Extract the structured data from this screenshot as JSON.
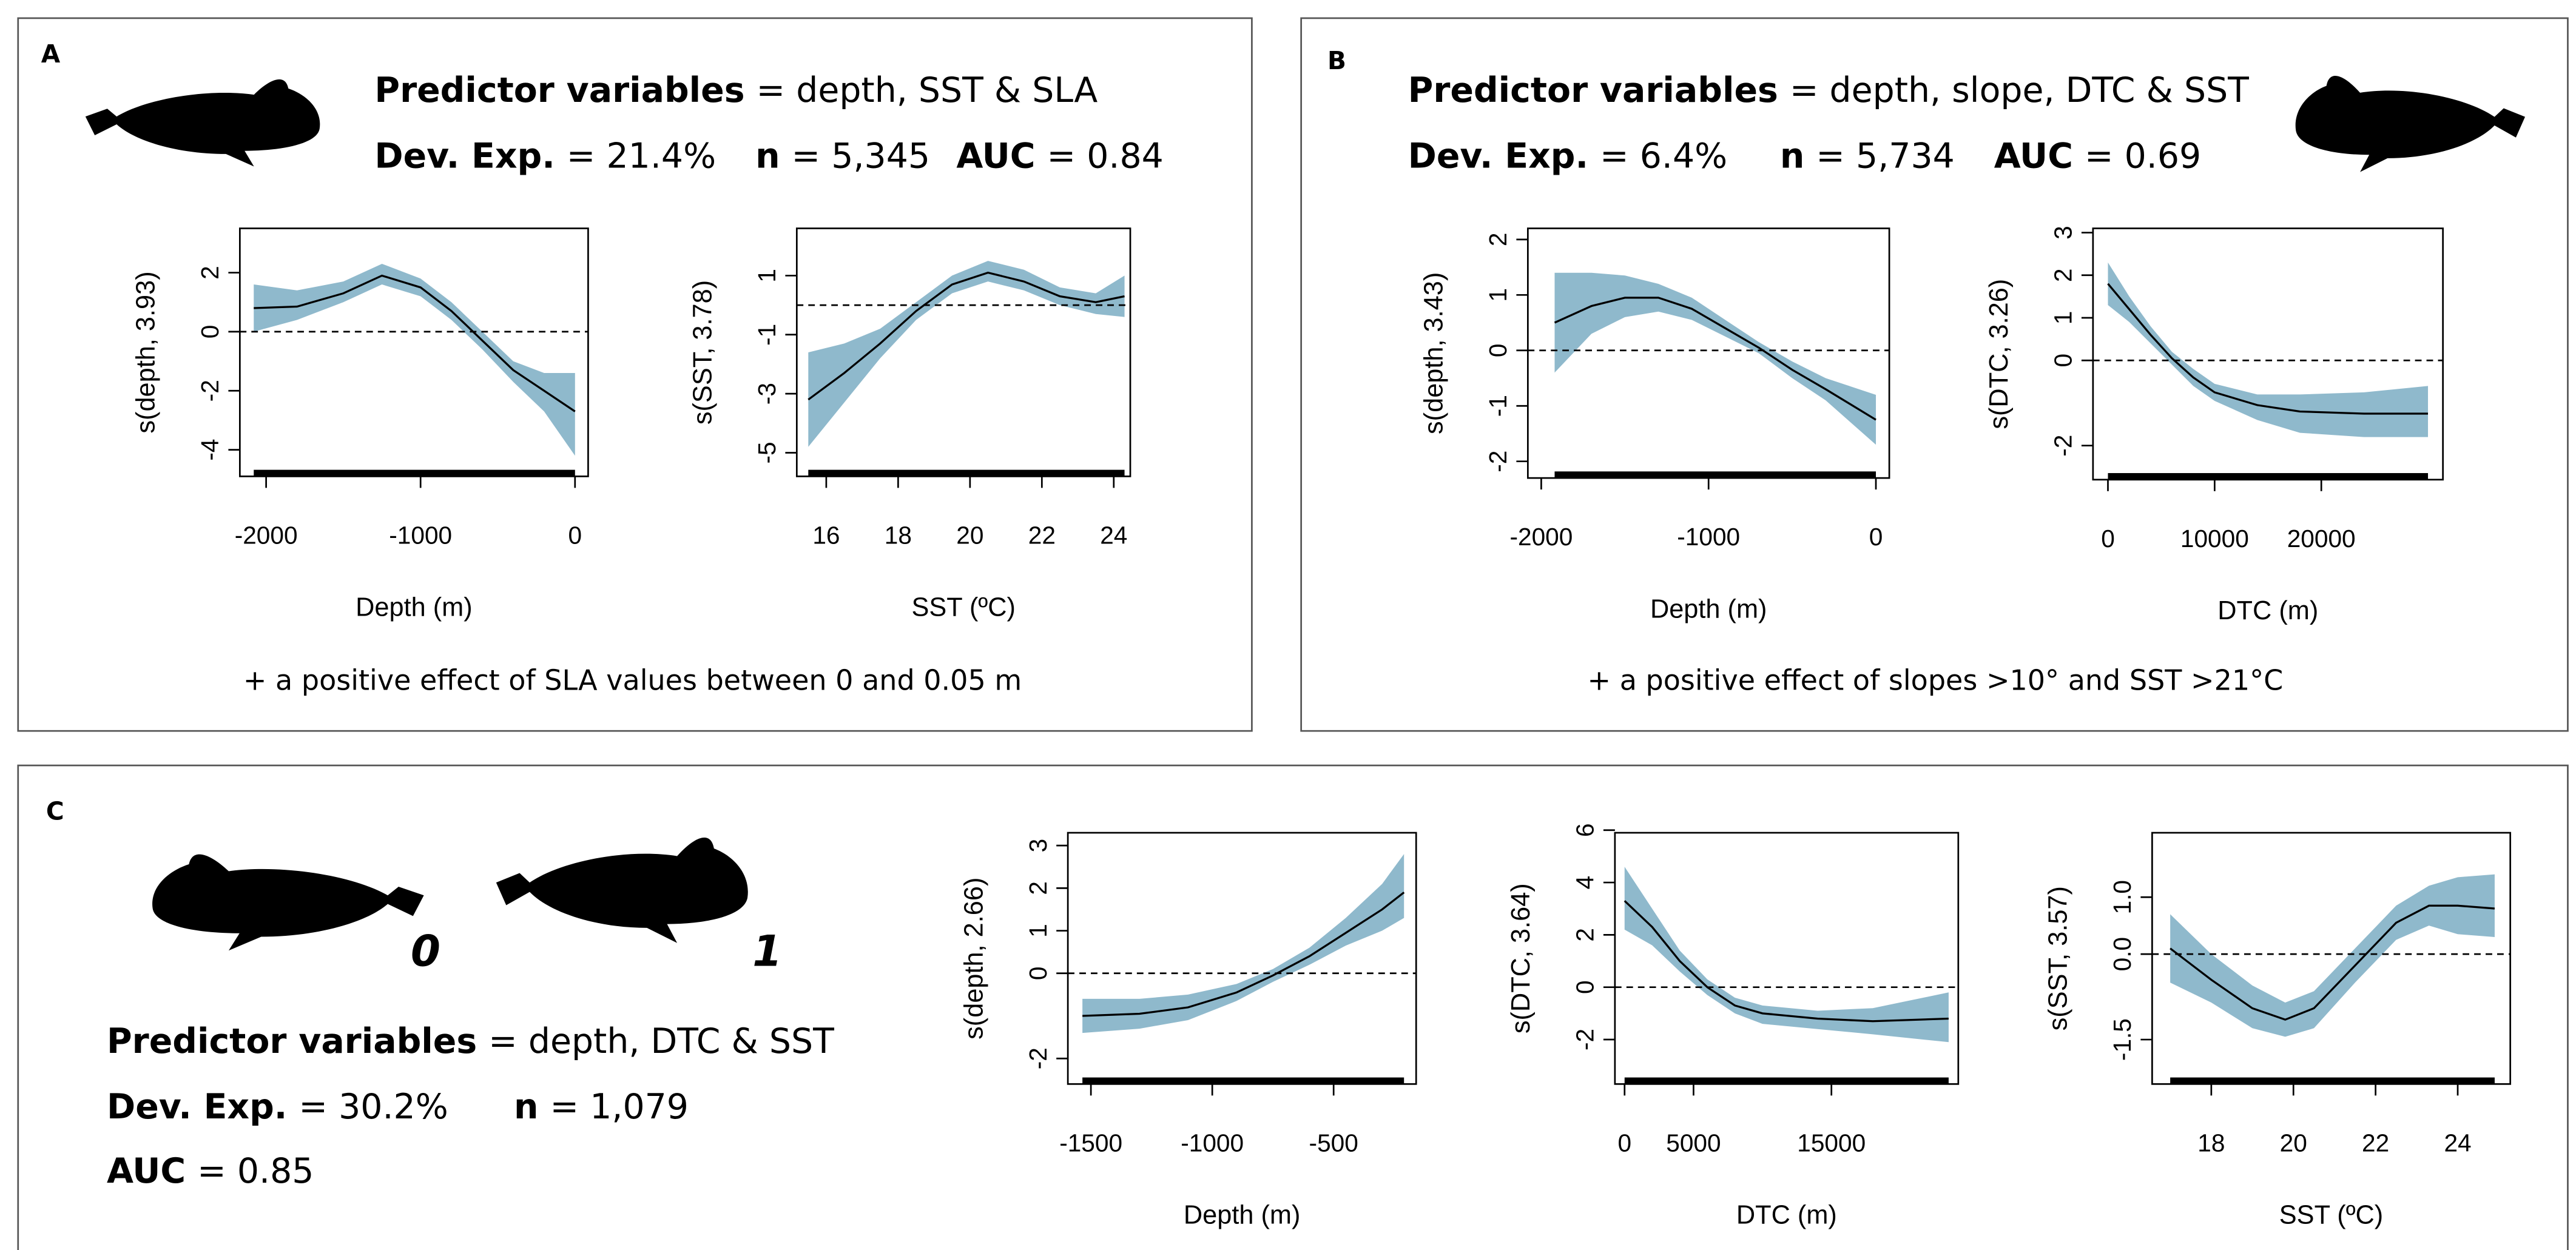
{
  "panels": [
    {
      "label": "A",
      "predictors_label": "Predictor variables",
      "predictors": "= depth, SST & SLA",
      "dev_label": "Dev. Exp.",
      "dev": "= 21.4%",
      "n_label": "n",
      "n": "= 5,345",
      "auc_label": "AUC",
      "auc": "= 0.84",
      "note": "+ a positive effect of SLA values between 0 and 0.05 m"
    },
    {
      "label": "B",
      "predictors_label": "Predictor variables",
      "predictors": "= depth, slope, DTC & SST",
      "dev_label": "Dev. Exp.",
      "dev": "= 6.4%",
      "n_label": "n",
      "n": "= 5,734",
      "auc_label": "AUC",
      "auc": "= 0.69",
      "note": "+ a positive effect of slopes >10° and SST >21°C"
    },
    {
      "label": "C",
      "predictors_label": "Predictor variables",
      "predictors": "= depth, DTC & SST",
      "dev_label": "Dev. Exp.",
      "dev": "= 30.2%",
      "n_label": "n",
      "n": "= 1,079",
      "auc_label": "AUC",
      "auc": "= 0.85",
      "whale_labels": [
        "0",
        "1"
      ]
    }
  ],
  "chart_data": [
    {
      "type": "line",
      "xlabel": "Depth (m)",
      "ylabel": "s(depth, 3.93)",
      "x": [
        -2080,
        -1800,
        -1500,
        -1250,
        -1000,
        -800,
        -600,
        -400,
        -200,
        0
      ],
      "values": [
        0.8,
        0.85,
        1.3,
        1.9,
        1.5,
        0.7,
        -0.3,
        -1.3,
        -2.0,
        -2.7
      ],
      "lower": [
        0.0,
        0.4,
        1.0,
        1.6,
        1.2,
        0.4,
        -0.6,
        -1.7,
        -2.7,
        -4.2
      ],
      "upper": [
        1.6,
        1.4,
        1.7,
        2.3,
        1.8,
        1.0,
        0.0,
        -1.0,
        -1.4,
        -1.4
      ],
      "xlim": [
        -2170,
        85
      ],
      "ylim": [
        -4.9,
        3.5
      ],
      "xticks": [
        -2000,
        -1000,
        0
      ],
      "yticks": [
        -4,
        -2,
        0,
        2
      ],
      "reference_line": 0,
      "line_color": "#000000",
      "band_color": "#8fb9cc"
    },
    {
      "type": "line",
      "xlabel": "SST (ºC)",
      "ylabel": "s(SST, 3.78)",
      "x": [
        15.5,
        16.5,
        17.5,
        18.5,
        19.5,
        20.5,
        21.5,
        22.5,
        23.5,
        24.3
      ],
      "values": [
        -3.2,
        -2.3,
        -1.3,
        -0.2,
        0.7,
        1.1,
        0.8,
        0.3,
        0.1,
        0.3
      ],
      "lower": [
        -4.8,
        -3.3,
        -1.8,
        -0.5,
        0.4,
        0.8,
        0.5,
        0.0,
        -0.3,
        -0.4
      ],
      "upper": [
        -1.6,
        -1.3,
        -0.8,
        0.1,
        1.0,
        1.5,
        1.2,
        0.6,
        0.4,
        1.0
      ],
      "xlim": [
        15.18,
        24.46
      ],
      "ylim": [
        -5.8,
        2.6
      ],
      "xticks": [
        16,
        18,
        20,
        22,
        24
      ],
      "yticks": [
        -5,
        -3,
        -1,
        1
      ],
      "reference_line": 0,
      "line_color": "#000000",
      "band_color": "#8fb9cc"
    },
    {
      "type": "line",
      "xlabel": "Depth (m)",
      "ylabel": "s(depth, 3.43)",
      "x": [
        -1920,
        -1700,
        -1500,
        -1300,
        -1100,
        -900,
        -700,
        -500,
        -300,
        0
      ],
      "values": [
        0.5,
        0.8,
        0.95,
        0.95,
        0.75,
        0.4,
        0.05,
        -0.35,
        -0.7,
        -1.25
      ],
      "lower": [
        -0.4,
        0.3,
        0.6,
        0.7,
        0.55,
        0.25,
        -0.05,
        -0.5,
        -0.9,
        -1.7
      ],
      "upper": [
        1.4,
        1.4,
        1.35,
        1.2,
        0.95,
        0.55,
        0.15,
        -0.2,
        -0.5,
        -0.8
      ],
      "xlim": [
        -2080,
        80
      ],
      "ylim": [
        -2.3,
        2.2
      ],
      "xticks": [
        -2000,
        -1000,
        0
      ],
      "yticks": [
        -2,
        -1,
        0,
        1,
        2
      ],
      "reference_line": 0,
      "line_color": "#000000",
      "band_color": "#8fb9cc"
    },
    {
      "type": "line",
      "xlabel": "DTC (m)",
      "ylabel": "s(DTC, 3.26)",
      "x": [
        0,
        2000,
        4000,
        6000,
        8000,
        10000,
        14000,
        18000,
        24000,
        30000
      ],
      "values": [
        1.8,
        1.2,
        0.6,
        0.05,
        -0.4,
        -0.75,
        -1.05,
        -1.2,
        -1.25,
        -1.25
      ],
      "lower": [
        1.3,
        0.9,
        0.4,
        -0.1,
        -0.6,
        -0.95,
        -1.4,
        -1.7,
        -1.8,
        -1.8
      ],
      "upper": [
        2.3,
        1.5,
        0.8,
        0.2,
        -0.2,
        -0.55,
        -0.8,
        -0.8,
        -0.75,
        -0.6
      ],
      "xlim": [
        -1400,
        31400
      ],
      "ylim": [
        -2.8,
        3.1
      ],
      "xticks": [
        0,
        10000,
        20000
      ],
      "yticks": [
        -2,
        0,
        1,
        2,
        3
      ],
      "reference_line": 0,
      "line_color": "#000000",
      "band_color": "#8fb9cc"
    },
    {
      "type": "line",
      "xlabel": "Depth (m)",
      "ylabel": "s(depth, 2.66)",
      "x": [
        -1535,
        -1300,
        -1100,
        -900,
        -750,
        -600,
        -450,
        -300,
        -210
      ],
      "values": [
        -1.0,
        -0.95,
        -0.8,
        -0.45,
        -0.05,
        0.4,
        0.95,
        1.5,
        1.9
      ],
      "lower": [
        -1.4,
        -1.3,
        -1.1,
        -0.65,
        -0.2,
        0.2,
        0.65,
        1.0,
        1.3
      ],
      "upper": [
        -0.6,
        -0.6,
        -0.5,
        -0.25,
        0.1,
        0.6,
        1.3,
        2.1,
        2.8
      ],
      "xlim": [
        -1595,
        -160
      ],
      "ylim": [
        -2.6,
        3.3
      ],
      "xticks": [
        -1500,
        -1000,
        -500
      ],
      "yticks": [
        -2,
        0,
        1,
        2,
        3
      ],
      "reference_line": 0,
      "line_color": "#000000",
      "band_color": "#8fb9cc"
    },
    {
      "type": "line",
      "xlabel": "DTC (m)",
      "ylabel": "s(DTC, 3.64)",
      "x": [
        0,
        2000,
        4000,
        6000,
        8000,
        10000,
        14000,
        18000,
        23500
      ],
      "values": [
        3.3,
        2.3,
        1.0,
        0.0,
        -0.7,
        -1.0,
        -1.2,
        -1.3,
        -1.2
      ],
      "lower": [
        2.2,
        1.6,
        0.6,
        -0.3,
        -1.0,
        -1.4,
        -1.6,
        -1.8,
        -2.1
      ],
      "upper": [
        4.6,
        3.0,
        1.4,
        0.3,
        -0.4,
        -0.7,
        -0.9,
        -0.8,
        -0.2
      ],
      "xlim": [
        -700,
        24200
      ],
      "ylim": [
        -3.7,
        5.9
      ],
      "xticks": [
        0,
        5000,
        15000
      ],
      "yticks": [
        -2,
        0,
        2,
        4,
        6
      ],
      "reference_line": 0,
      "line_color": "#000000",
      "band_color": "#8fb9cc"
    },
    {
      "type": "line",
      "xlabel": "SST (ºC)",
      "ylabel": "s(SST, 3.57)",
      "x": [
        17,
        18,
        19,
        19.8,
        20.5,
        21.5,
        22.5,
        23.3,
        24,
        24.9
      ],
      "values": [
        0.1,
        -0.45,
        -0.95,
        -1.15,
        -0.95,
        -0.2,
        0.55,
        0.85,
        0.85,
        0.8
      ],
      "lower": [
        -0.5,
        -0.85,
        -1.3,
        -1.45,
        -1.3,
        -0.5,
        0.25,
        0.5,
        0.35,
        0.3
      ],
      "upper": [
        0.7,
        0.0,
        -0.55,
        -0.85,
        -0.65,
        0.1,
        0.85,
        1.2,
        1.35,
        1.4
      ],
      "xlim": [
        16.56,
        25.28
      ],
      "ylim": [
        -2.28,
        2.13
      ],
      "xticks": [
        18,
        20,
        22,
        24
      ],
      "yticks": [
        -1.5,
        {
          "value": 0,
          "label": "0.0"
        },
        {
          "value": 1,
          "label": "1.0"
        }
      ],
      "reference_line": 0,
      "line_color": "#000000",
      "band_color": "#8fb9cc"
    }
  ]
}
